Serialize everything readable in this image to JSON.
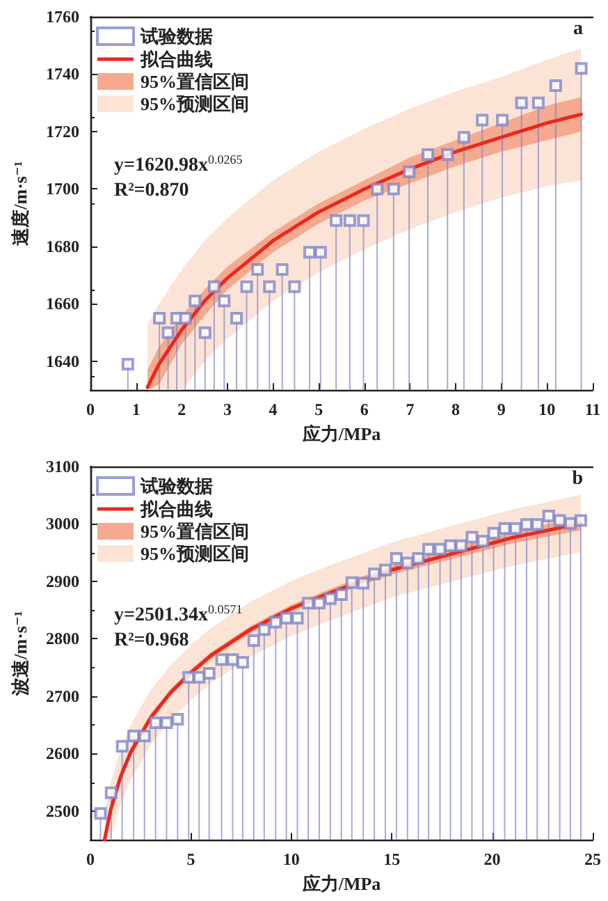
{
  "chart_data": [
    {
      "type": "lollipop",
      "xlabel": "应力/MPa",
      "ylabel": "速度/m·s⁻¹",
      "xlim": [
        0,
        11
      ],
      "xticks": [
        0,
        1,
        2,
        3,
        4,
        5,
        6,
        7,
        8,
        9,
        10,
        11
      ],
      "ylim": [
        1630,
        1760
      ],
      "yticks": [
        1640,
        1660,
        1680,
        1700,
        1720,
        1740,
        1760
      ],
      "grid": false,
      "legend": "top left",
      "annotations": [
        "a",
        "y=1620.98x$^{0.0265}$",
        "R²=0.870"
      ],
      "series": [
        {
          "name": "试验数据",
          "type": "lollipop",
          "marker": "square",
          "color": "#7f86c8",
          "x": [
            0.82,
            1.51,
            1.7,
            1.89,
            2.08,
            2.29,
            2.51,
            2.71,
            2.93,
            3.2,
            3.42,
            3.66,
            3.92,
            4.2,
            4.47,
            4.8,
            5.04,
            5.38,
            5.68,
            5.98,
            6.28,
            6.64,
            6.98,
            7.39,
            7.82,
            8.18,
            8.58,
            9.02,
            9.44,
            9.81,
            10.19,
            10.75
          ],
          "values": [
            1639,
            1655,
            1650,
            1655,
            1655,
            1661,
            1650,
            1666,
            1661,
            1655,
            1666,
            1672,
            1666,
            1672,
            1666,
            1678,
            1678,
            1689,
            1689,
            1689,
            1700,
            1700,
            1706,
            1712,
            1712,
            1718,
            1724,
            1724,
            1730,
            1730,
            1736,
            1742
          ]
        },
        {
          "name": "拟合曲线",
          "type": "line",
          "color": "#e8281e",
          "x": [
            1.25,
            1.5,
            2,
            2.5,
            3,
            4,
            5,
            6,
            7,
            8,
            9,
            10,
            10.75
          ],
          "values": [
            1631,
            1639,
            1651,
            1661,
            1669,
            1682,
            1692,
            1700,
            1707,
            1713,
            1718,
            1723,
            1726
          ]
        },
        {
          "name": "95%置信区间",
          "type": "line",
          "color": "#f5a98e",
          "x": [
            1.25,
            1.5,
            2,
            2.5,
            3,
            4,
            5,
            6,
            7,
            8,
            9,
            10,
            10.75
          ],
          "values": [
            null,
            null,
            null,
            null,
            null,
            null,
            null,
            null,
            null,
            null,
            null,
            null,
            null
          ],
          "lower": [
            1630,
            1632,
            1646,
            1656,
            1665,
            1678,
            1688,
            1696,
            1702,
            1708,
            1713,
            1717,
            1720
          ],
          "upper": [
            1637,
            1645,
            1656,
            1665,
            1673,
            1685,
            1695,
            1703,
            1711,
            1717,
            1723,
            1729,
            1732
          ]
        },
        {
          "name": "95%预测区间",
          "type": "line",
          "color": "#fbe3d6",
          "x": [
            1.25,
            1.5,
            2,
            2.5,
            3,
            4,
            5,
            6,
            7,
            8,
            9,
            10,
            10.75
          ],
          "values": [
            null,
            null,
            null,
            null,
            null,
            null,
            null,
            null,
            null,
            null,
            null,
            null,
            null
          ],
          "lower": [
            1630,
            1630,
            1630,
            1640,
            1648,
            1661,
            1671,
            1679,
            1686,
            1692,
            1697,
            1701,
            1703
          ],
          "upper": [
            1653,
            1660,
            1672,
            1682,
            1690,
            1703,
            1713,
            1721,
            1728,
            1734,
            1739,
            1745,
            1749
          ]
        }
      ]
    },
    {
      "type": "lollipop",
      "xlabel": "应力/MPa",
      "ylabel": "波速/m·s⁻¹",
      "xlim": [
        0,
        25
      ],
      "xticks": [
        0,
        5,
        10,
        15,
        20,
        25
      ],
      "ylim": [
        2450,
        3100
      ],
      "yticks": [
        2500,
        2600,
        2700,
        2800,
        2900,
        3000,
        3100
      ],
      "grid": false,
      "legend": "top left",
      "annotations": [
        "b",
        "y=2501.34x$^{0.0571}$",
        "R²=0.968"
      ],
      "series": [
        {
          "name": "试验数据",
          "type": "lollipop",
          "marker": "square",
          "color": "#7f86c8",
          "x": [
            0.5,
            1.03,
            1.58,
            2.15,
            2.69,
            3.24,
            3.79,
            4.34,
            4.89,
            5.41,
            5.91,
            6.53,
            7.08,
            7.58,
            8.13,
            8.65,
            9.22,
            9.75,
            10.3,
            10.84,
            11.39,
            11.94,
            12.49,
            13.01,
            13.58,
            14.13,
            14.68,
            15.23,
            15.78,
            16.32,
            16.83,
            17.4,
            17.92,
            18.45,
            18.99,
            19.54,
            20.07,
            20.62,
            21.16,
            21.71,
            22.24,
            22.81,
            23.36,
            23.89,
            24.41
          ],
          "values": [
            2496,
            2532,
            2613,
            2631,
            2631,
            2654,
            2654,
            2660,
            2733,
            2733,
            2740,
            2764,
            2764,
            2759,
            2797,
            2816,
            2829,
            2836,
            2836,
            2862,
            2862,
            2870,
            2877,
            2898,
            2897,
            2913,
            2920,
            2940,
            2932,
            2940,
            2956,
            2956,
            2962,
            2962,
            2977,
            2970,
            2984,
            2992,
            2992,
            2999,
            2999,
            3014,
            3006,
            3001,
            3006
          ]
        },
        {
          "name": "拟合曲线",
          "type": "line",
          "color": "#e8281e",
          "x": [
            0.7,
            1,
            1.5,
            2,
            3,
            4,
            5,
            6,
            8,
            10,
            12,
            15,
            18,
            21,
            24.4
          ],
          "values": [
            2450,
            2501,
            2560,
            2602,
            2663,
            2707,
            2741,
            2771,
            2817,
            2853,
            2881,
            2920,
            2948,
            2976,
            3001
          ]
        },
        {
          "name": "95%置信区间",
          "type": "line",
          "color": "#f5a98e",
          "x": [
            0.7,
            1,
            1.5,
            2,
            3,
            4,
            5,
            6,
            8,
            10,
            12,
            15,
            18,
            21,
            24.4
          ],
          "values": [
            null,
            null,
            null,
            null,
            null,
            null,
            null,
            null,
            null,
            null,
            null,
            null,
            null,
            null,
            null
          ],
          "lower": [
            2450,
            2491,
            2551,
            2594,
            2656,
            2701,
            2735,
            2765,
            2811,
            2847,
            2874,
            2912,
            2939,
            2966,
            2989
          ],
          "upper": [
            2460,
            2511,
            2569,
            2610,
            2670,
            2713,
            2747,
            2777,
            2823,
            2859,
            2888,
            2928,
            2957,
            2986,
            3013
          ]
        },
        {
          "name": "95%预测区间",
          "type": "line",
          "color": "#fbe3d6",
          "x": [
            0.7,
            1,
            1.5,
            2,
            3,
            4,
            5,
            6,
            8,
            10,
            12,
            15,
            18,
            21,
            24.4
          ],
          "values": [
            null,
            null,
            null,
            null,
            null,
            null,
            null,
            null,
            null,
            null,
            null,
            null,
            null,
            null,
            null
          ],
          "lower": [
            2450,
            2453,
            2512,
            2554,
            2615,
            2659,
            2693,
            2723,
            2769,
            2805,
            2833,
            2872,
            2900,
            2927,
            2951
          ],
          "upper": [
            2498,
            2549,
            2608,
            2650,
            2711,
            2755,
            2789,
            2819,
            2865,
            2901,
            2929,
            2968,
            2997,
            3025,
            3051
          ]
        }
      ]
    }
  ]
}
